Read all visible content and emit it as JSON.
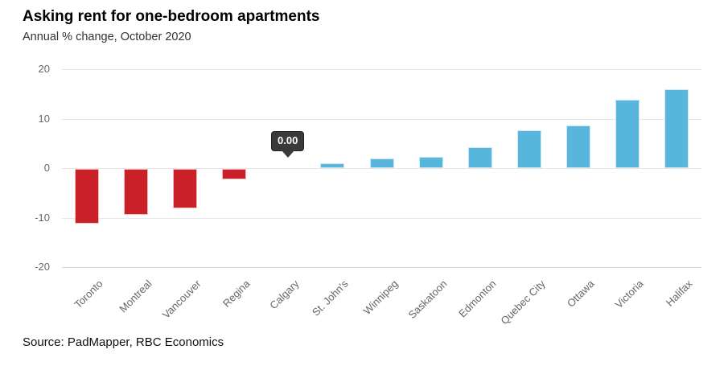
{
  "header": {
    "title": "Asking rent for one-bedroom apartments",
    "subtitle": "Annual % change, October 2020"
  },
  "footer": {
    "source": "Source: PadMapper, RBC Economics"
  },
  "tooltip": {
    "value": "0.00",
    "target": "Calgary",
    "bg_color": "#3a3a3a",
    "text_color": "#fffdf4"
  },
  "chart_data": {
    "type": "bar",
    "title": "Asking rent for one-bedroom apartments",
    "subtitle": "Annual % change, October 2020",
    "categories": [
      "Toronto",
      "Montreal",
      "Vancouver",
      "Regina",
      "Calgary",
      "St. John's",
      "Winnipeg",
      "Saskatoon",
      "Edmonton",
      "Quebec City",
      "Ottawa",
      "Victoria",
      "Halifax"
    ],
    "values": [
      -11.1,
      -9.3,
      -8.0,
      -2.1,
      0.0,
      1.0,
      2.0,
      2.3,
      4.2,
      7.7,
      8.6,
      13.9,
      15.9
    ],
    "xlabel": "",
    "ylabel": "",
    "ylim": [
      -20,
      20
    ],
    "yticks": [
      -20,
      -10,
      0,
      10,
      20
    ],
    "ytick_labels": [
      "-20",
      "-10",
      "0",
      "10",
      "20"
    ],
    "grid": true,
    "legend": false,
    "bar_colors": {
      "negative": "#c92127",
      "positive": "#58b5dc"
    },
    "grid_color": "#e6e6e6",
    "axis_line_color": "#ccd6eb",
    "label_color": "#666666"
  }
}
